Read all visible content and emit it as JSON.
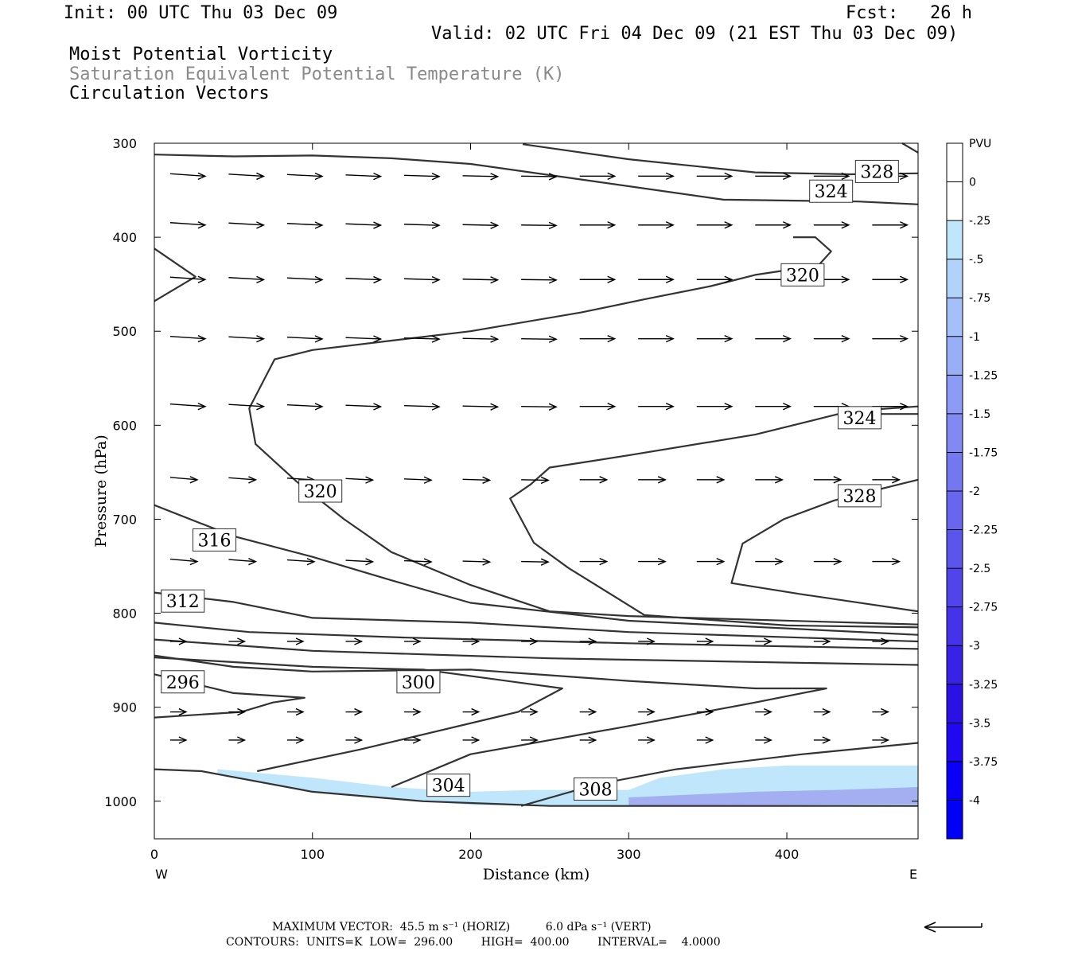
{
  "header": {
    "init": "Init: 00 UTC Thu 03 Dec 09",
    "fcst": "Fcst:   26 h",
    "valid": "Valid: 02 UTC Fri 04 Dec 09 (21 EST Thu 03 Dec 09)",
    "field1": "Moist Potential Vorticity",
    "field2": "Saturation Equivalent Potential Temperature (K)",
    "field3": "Circulation Vectors"
  },
  "footer": {
    "max_vector": "MAXIMUM VECTOR:  45.5 m s⁻¹ (HORIZ)          6.0 dPa s⁻¹ (VERT)",
    "contours": "CONTOURS:  UNITS=K  LOW=  296.00        HIGH=  400.00        INTERVAL=    4.0000"
  },
  "colors": {
    "contour": "#333333",
    "mpv_light": "#bfe6fa",
    "mpv_mid": "#a0a8f0",
    "mpv_dark": "#6a6ae8"
  },
  "chart_data": {
    "type": "contour",
    "xlabel": "Distance (km)",
    "ylabel": "Pressure (hPa)",
    "x_ticks": [
      0,
      100,
      200,
      300,
      400
    ],
    "y_ticks": [
      300,
      400,
      500,
      600,
      700,
      800,
      900,
      1000
    ],
    "xlim": [
      0,
      483
    ],
    "ylim": [
      300,
      1040
    ],
    "y_scale": "linear, inverted",
    "x_end_labels": {
      "left": "W",
      "right": "E"
    },
    "contour_labels": [
      {
        "value": "328",
        "x": 457,
        "p": 330
      },
      {
        "value": "324",
        "x": 428,
        "p": 351
      },
      {
        "value": "320",
        "x": 410,
        "p": 440
      },
      {
        "value": "324",
        "x": 446,
        "p": 592
      },
      {
        "value": "328",
        "x": 446,
        "p": 675
      },
      {
        "value": "320",
        "x": 105,
        "p": 670
      },
      {
        "value": "316",
        "x": 38,
        "p": 722
      },
      {
        "value": "312",
        "x": 18,
        "p": 787
      },
      {
        "value": "296",
        "x": 18,
        "p": 873
      },
      {
        "value": "300",
        "x": 167,
        "p": 873
      },
      {
        "value": "304",
        "x": 186,
        "p": 983
      },
      {
        "value": "308",
        "x": 279,
        "p": 987
      }
    ],
    "contour_lines": [
      [
        [
          0,
          312
        ],
        [
          50,
          314
        ],
        [
          100,
          313
        ],
        [
          150,
          316
        ],
        [
          200,
          322
        ],
        [
          280,
          341
        ],
        [
          360,
          360
        ],
        [
          445,
          362
        ],
        [
          483,
          365
        ]
      ],
      [
        [
          233,
          301
        ],
        [
          300,
          317
        ],
        [
          380,
          331
        ],
        [
          440,
          333
        ],
        [
          483,
          332
        ]
      ],
      [
        [
          0,
          412
        ],
        [
          26,
          442
        ],
        [
          0,
          468
        ]
      ],
      [
        [
          473,
          300
        ],
        [
          483,
          310
        ]
      ],
      [
        [
          483,
          580
        ],
        [
          440,
          585
        ],
        [
          380,
          610
        ],
        [
          300,
          632
        ],
        [
          250,
          645
        ],
        [
          238,
          663
        ],
        [
          225,
          678
        ],
        [
          240,
          725
        ],
        [
          262,
          752
        ],
        [
          310,
          802
        ],
        [
          400,
          813
        ],
        [
          483,
          815
        ]
      ],
      [
        [
          483,
          658
        ],
        [
          430,
          680
        ],
        [
          398,
          700
        ],
        [
          372,
          726
        ],
        [
          365,
          768
        ],
        [
          410,
          780
        ],
        [
          483,
          798
        ]
      ],
      [
        [
          483,
          588
        ],
        [
          450,
          588
        ]
      ],
      [
        [
          404,
          400
        ],
        [
          418,
          400
        ],
        [
          428,
          415
        ],
        [
          420,
          430
        ],
        [
          380,
          440
        ],
        [
          352,
          452
        ],
        [
          310,
          466
        ],
        [
          270,
          480
        ],
        [
          200,
          500
        ],
        [
          150,
          510
        ],
        [
          100,
          520
        ],
        [
          76,
          530
        ],
        [
          60,
          582
        ],
        [
          64,
          620
        ],
        [
          90,
          660
        ],
        [
          120,
          700
        ],
        [
          150,
          735
        ],
        [
          200,
          770
        ],
        [
          250,
          798
        ],
        [
          300,
          803
        ],
        [
          483,
          812
        ]
      ],
      [
        [
          0,
          685
        ],
        [
          50,
          718
        ],
        [
          100,
          740
        ],
        [
          150,
          765
        ],
        [
          200,
          789
        ],
        [
          300,
          808
        ],
        [
          483,
          823
        ]
      ],
      [
        [
          0,
          778
        ],
        [
          50,
          788
        ],
        [
          100,
          805
        ],
        [
          200,
          810
        ],
        [
          300,
          820
        ],
        [
          483,
          830
        ]
      ],
      [
        [
          0,
          810
        ],
        [
          60,
          820
        ],
        [
          160,
          826
        ],
        [
          300,
          832
        ],
        [
          483,
          838
        ]
      ],
      [
        [
          0,
          828
        ],
        [
          100,
          840
        ],
        [
          250,
          848
        ],
        [
          483,
          855
        ]
      ],
      [
        [
          0,
          845
        ],
        [
          50,
          857
        ],
        [
          100,
          862
        ],
        [
          200,
          860
        ],
        [
          300,
          872
        ],
        [
          380,
          880
        ],
        [
          425,
          880
        ],
        [
          380,
          895
        ],
        [
          300,
          920
        ],
        [
          200,
          950
        ],
        [
          150,
          985
        ]
      ],
      [
        [
          0,
          865
        ],
        [
          50,
          885
        ],
        [
          95,
          890
        ],
        [
          75,
          895
        ],
        [
          55,
          905
        ],
        [
          0,
          911
        ]
      ],
      [
        [
          65,
          968
        ],
        [
          130,
          945
        ],
        [
          230,
          905
        ],
        [
          258,
          880
        ],
        [
          170,
          860
        ],
        [
          100,
          857
        ],
        [
          0,
          847
        ]
      ],
      [
        [
          232,
          1005
        ],
        [
          280,
          982
        ],
        [
          330,
          966
        ],
        [
          410,
          950
        ],
        [
          483,
          938
        ]
      ],
      [
        [
          0,
          966
        ],
        [
          30,
          968
        ],
        [
          100,
          990
        ],
        [
          170,
          1000
        ],
        [
          250,
          1005
        ],
        [
          483,
          1005
        ]
      ]
    ],
    "vector_rows_p": [
      335,
      387,
      445,
      508,
      580,
      658,
      745,
      830,
      905,
      935
    ],
    "mpv_colorbar": {
      "label": "PVU",
      "levels": [
        "0",
        "-.25",
        "-.5",
        "-.75",
        "-1",
        "-1.25",
        "-1.5",
        "-1.75",
        "-2",
        "-2.25",
        "-2.5",
        "-2.75",
        "-3",
        "-3.25",
        "-3.5",
        "-3.75",
        "-4"
      ],
      "colors": [
        "#ffffff",
        "#ffffff",
        "#bfe6fa",
        "#b2d2fa",
        "#a5c0f8",
        "#98aef6",
        "#8c9cf4",
        "#808af2",
        "#7478f0",
        "#6866ee",
        "#5c55ec",
        "#5044ea",
        "#4433e8",
        "#3822e6",
        "#2c11e4",
        "#2008f0",
        "#0a00f6",
        "#0000f8"
      ]
    },
    "mpv_shading": {
      "light_region": [
        [
          40,
          966
        ],
        [
          100,
          975
        ],
        [
          150,
          985
        ],
        [
          200,
          990
        ],
        [
          240,
          988
        ],
        [
          300,
          988
        ],
        [
          320,
          975
        ],
        [
          360,
          966
        ],
        [
          400,
          962
        ],
        [
          483,
          962
        ],
        [
          483,
          1005
        ],
        [
          300,
          1006
        ],
        [
          200,
          1004
        ],
        [
          100,
          990
        ],
        [
          40,
          970
        ]
      ],
      "dark_region": [
        [
          300,
          996
        ],
        [
          380,
          990
        ],
        [
          430,
          988
        ],
        [
          483,
          985
        ],
        [
          483,
          1003
        ],
        [
          400,
          1004
        ],
        [
          300,
          1005
        ]
      ]
    }
  }
}
